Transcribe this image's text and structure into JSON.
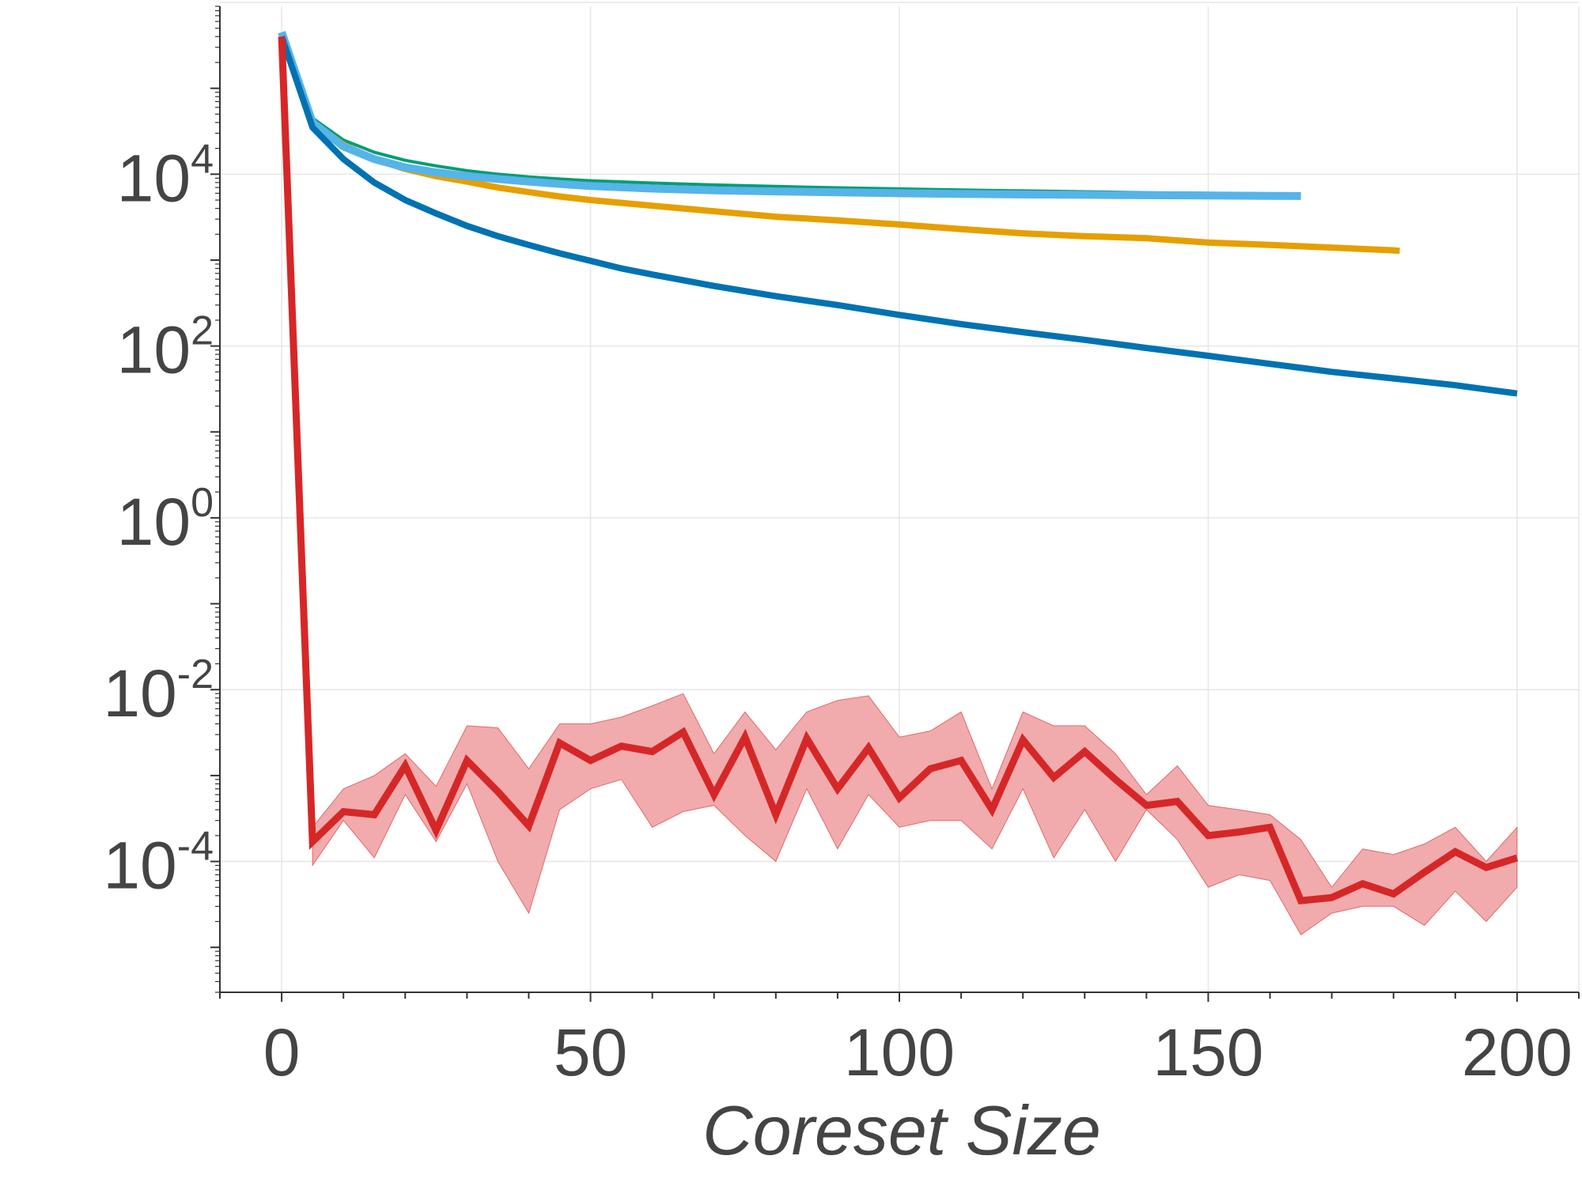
{
  "chart_data": {
    "type": "line",
    "title": "",
    "xlabel": "Coreset Size",
    "ylabel": "",
    "yscale": "log",
    "xlim": [
      -10,
      210
    ],
    "ylim": [
      3e-06,
      900000
    ],
    "grid": true,
    "x_ticks": [
      0,
      50,
      100,
      150,
      200
    ],
    "x_tick_labels": [
      "0",
      "50",
      "100",
      "150",
      "200"
    ],
    "y_ticks": [
      0.0001,
      0.01,
      1,
      100,
      10000
    ],
    "y_tick_labels": [
      {
        "base": "10",
        "exp": "-4"
      },
      {
        "base": "10",
        "exp": "-2"
      },
      {
        "base": "10",
        "exp": "0"
      },
      {
        "base": "10",
        "exp": "2"
      },
      {
        "base": "10",
        "exp": "4"
      }
    ],
    "series": [
      {
        "color": "#009e73",
        "width": 4,
        "x": [
          0,
          5,
          10,
          15,
          20,
          25,
          30,
          35,
          40,
          45,
          50,
          60,
          70,
          80,
          90,
          100,
          110,
          120,
          130,
          140,
          150,
          160,
          165
        ],
        "y": [
          400000,
          45000,
          25000,
          18000,
          14500,
          12500,
          11000,
          10000,
          9300,
          8800,
          8400,
          7900,
          7500,
          7200,
          6950,
          6750,
          6550,
          6400,
          6250,
          6100,
          6000,
          5900,
          5850
        ]
      },
      {
        "color": "#e69f00",
        "width": 8,
        "x": [
          0,
          5,
          10,
          15,
          20,
          25,
          30,
          35,
          40,
          45,
          50,
          60,
          70,
          80,
          90,
          100,
          110,
          120,
          130,
          140,
          150,
          160,
          170,
          180,
          181
        ],
        "y": [
          400000,
          40000,
          22000,
          15000,
          11500,
          9500,
          8200,
          7000,
          6200,
          5500,
          5000,
          4300,
          3700,
          3200,
          2900,
          2600,
          2300,
          2050,
          1900,
          1800,
          1600,
          1500,
          1400,
          1300,
          1280
        ]
      },
      {
        "color": "#56b4e9",
        "width": 10,
        "x": [
          0,
          5,
          10,
          15,
          20,
          25,
          30,
          35,
          40,
          45,
          50,
          60,
          70,
          80,
          90,
          100,
          110,
          120,
          130,
          140,
          150,
          160,
          165
        ],
        "y": [
          450000,
          40000,
          21000,
          15000,
          12000,
          10500,
          9500,
          8800,
          8200,
          7700,
          7300,
          6800,
          6500,
          6300,
          6150,
          6000,
          5900,
          5800,
          5750,
          5700,
          5650,
          5600,
          5580
        ]
      },
      {
        "color": "#0072b2",
        "width": 8,
        "x": [
          0,
          5,
          10,
          15,
          20,
          25,
          30,
          35,
          40,
          45,
          50,
          55,
          60,
          70,
          80,
          90,
          100,
          110,
          120,
          130,
          140,
          150,
          160,
          170,
          180,
          190,
          200
        ],
        "y": [
          400000,
          35000,
          15000,
          8000,
          5000,
          3500,
          2500,
          1900,
          1500,
          1200,
          980,
          800,
          680,
          500,
          380,
          300,
          230,
          180,
          145,
          118,
          95,
          77,
          62,
          50,
          42,
          35,
          28
        ]
      },
      {
        "color": "#d62728",
        "width": 9,
        "x": [
          0,
          5,
          10,
          15,
          20,
          25,
          30,
          35,
          40,
          45,
          50,
          55,
          60,
          65,
          70,
          75,
          80,
          85,
          90,
          95,
          100,
          105,
          110,
          115,
          120,
          125,
          130,
          135,
          140,
          145,
          150,
          155,
          160,
          165,
          170,
          175,
          180,
          185,
          190,
          195,
          200
        ],
        "y": [
          400000,
          0.00017,
          0.00038,
          0.00035,
          0.0013,
          0.00023,
          0.0015,
          0.00065,
          0.00026,
          0.0024,
          0.0015,
          0.0022,
          0.0019,
          0.0032,
          0.0006,
          0.0028,
          0.00035,
          0.0027,
          0.0007,
          0.0021,
          0.00055,
          0.0012,
          0.0015,
          0.0004,
          0.0026,
          0.00095,
          0.0019,
          0.0009,
          0.00045,
          0.0005,
          0.0002,
          0.00022,
          0.00025,
          3.5e-05,
          3.8e-05,
          5.5e-05,
          4.2e-05,
          7.5e-05,
          0.00013,
          8.5e-05,
          0.00011
        ],
        "band_low": [
          400000,
          9e-05,
          0.0003,
          0.00011,
          0.0006,
          0.00017,
          0.0008,
          0.0001,
          2.5e-05,
          0.0004,
          0.0007,
          0.0009,
          0.00025,
          0.00038,
          0.00045,
          0.0002,
          0.0001,
          0.0007,
          0.00014,
          0.0006,
          0.00025,
          0.0003,
          0.0003,
          0.00014,
          0.0007,
          0.00011,
          0.0004,
          0.0001,
          0.0004,
          0.00018,
          5e-05,
          7e-05,
          6e-05,
          1.4e-05,
          2.5e-05,
          3e-05,
          3e-05,
          1.8e-05,
          4.5e-05,
          2e-05,
          5e-05
        ],
        "band_high": [
          400000,
          0.00025,
          0.0007,
          0.001,
          0.0018,
          0.00075,
          0.0038,
          0.0036,
          0.0012,
          0.004,
          0.004,
          0.0048,
          0.0065,
          0.009,
          0.0018,
          0.0055,
          0.002,
          0.0055,
          0.0075,
          0.0085,
          0.0028,
          0.0033,
          0.0055,
          0.0007,
          0.0055,
          0.0038,
          0.0038,
          0.0018,
          0.0006,
          0.0013,
          0.00045,
          0.0004,
          0.00035,
          0.00018,
          5e-05,
          0.00014,
          0.00012,
          0.00016,
          0.00025,
          0.0001,
          0.00025
        ],
        "band_color": "#f0a6a8"
      }
    ]
  },
  "axes": {
    "axis_color": "#333333",
    "grid_color": "#e6e6e6",
    "text_color": "#444444"
  }
}
